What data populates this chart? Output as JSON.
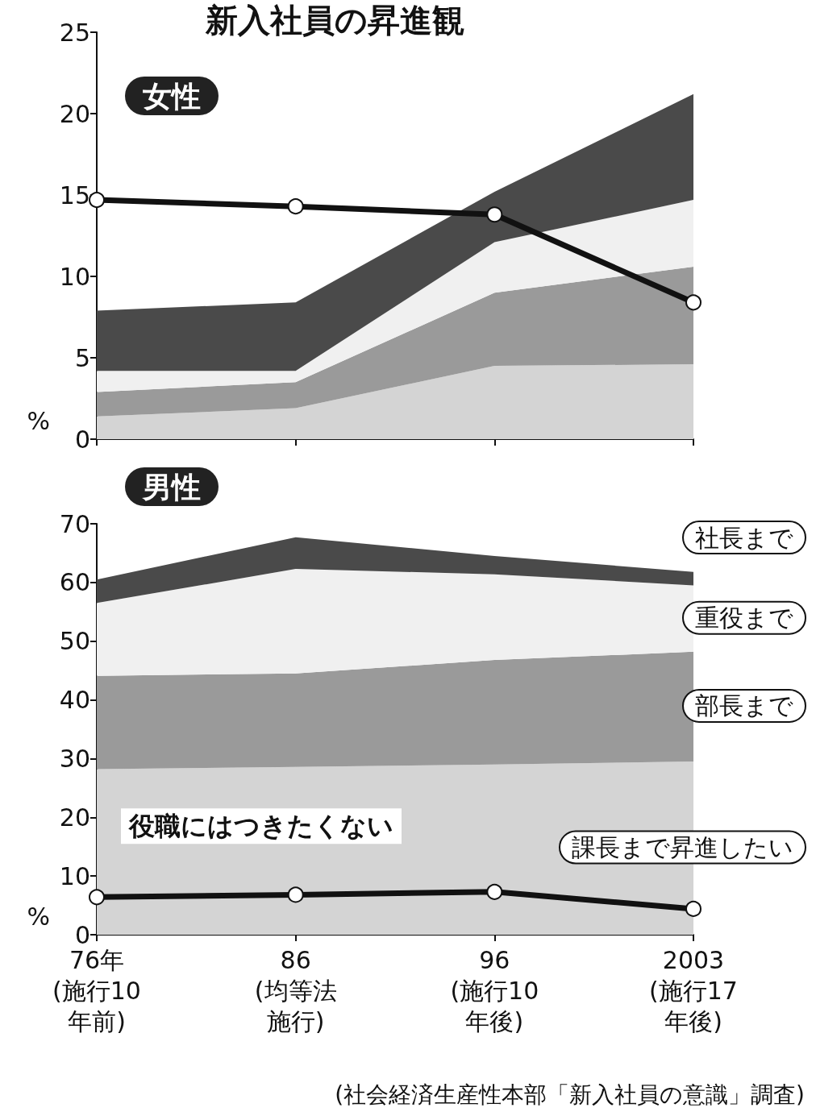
{
  "chart_data": [
    {
      "type": "area",
      "title": "新入社員の昇進観",
      "subtitle": "女性",
      "ylabel": "%",
      "stacked": true,
      "legend": false,
      "grid": false,
      "tick_labels": "y",
      "categories": [
        "76年(施行10年前)",
        "86(均等法施行)",
        "96(施行10年後)",
        "2003(施行17年後)"
      ],
      "ylim": [
        0,
        25
      ],
      "yticks": [
        0,
        5,
        10,
        15,
        20,
        25
      ],
      "series": [
        {
          "color": "#d4d4d4",
          "values": [
            1.4,
            1.9,
            4.5,
            4.6
          ]
        },
        {
          "color": "#9a9a9a",
          "values": [
            1.5,
            1.6,
            4.5,
            6.0
          ]
        },
        {
          "color": "#f0f0f0",
          "values": [
            1.3,
            0.7,
            3.1,
            4.1
          ]
        },
        {
          "color": "#4a4a4a",
          "values": [
            3.7,
            4.2,
            3.1,
            6.5
          ]
        },
        {
          "type": "line",
          "marker": "circle",
          "color": "#111111",
          "values": [
            14.7,
            14.3,
            13.8,
            8.4
          ]
        }
      ]
    },
    {
      "type": "area",
      "title": "男性",
      "ylabel": "%",
      "stacked": true,
      "legend": false,
      "grid": false,
      "categories": [
        "76年(施行10年前)",
        "86(均等法施行)",
        "96(施行10年後)",
        "2003(施行17年後)"
      ],
      "ylim": [
        0,
        70
      ],
      "yticks": [
        0,
        10,
        20,
        30,
        40,
        50,
        60,
        70
      ],
      "annotations": [
        "(社会経済生産性本部「新入社員の意識」調査)"
      ],
      "series": [
        {
          "name": "課長まで昇進したい",
          "color": "#d4d4d4",
          "values": [
            28.2,
            28.6,
            29.0,
            29.5
          ]
        },
        {
          "name": "部長まで",
          "color": "#9a9a9a",
          "values": [
            15.9,
            15.9,
            17.8,
            18.7
          ]
        },
        {
          "name": "重役まで",
          "color": "#f0f0f0",
          "values": [
            12.4,
            17.8,
            14.6,
            11.3
          ]
        },
        {
          "name": "社長まで",
          "color": "#4a4a4a",
          "values": [
            4.0,
            5.4,
            3.1,
            2.3
          ]
        },
        {
          "name": "役職にはつきたくない",
          "type": "line",
          "marker": "circle",
          "color": "#111111",
          "values": [
            6.4,
            6.8,
            7.3,
            4.4
          ]
        }
      ]
    }
  ]
}
